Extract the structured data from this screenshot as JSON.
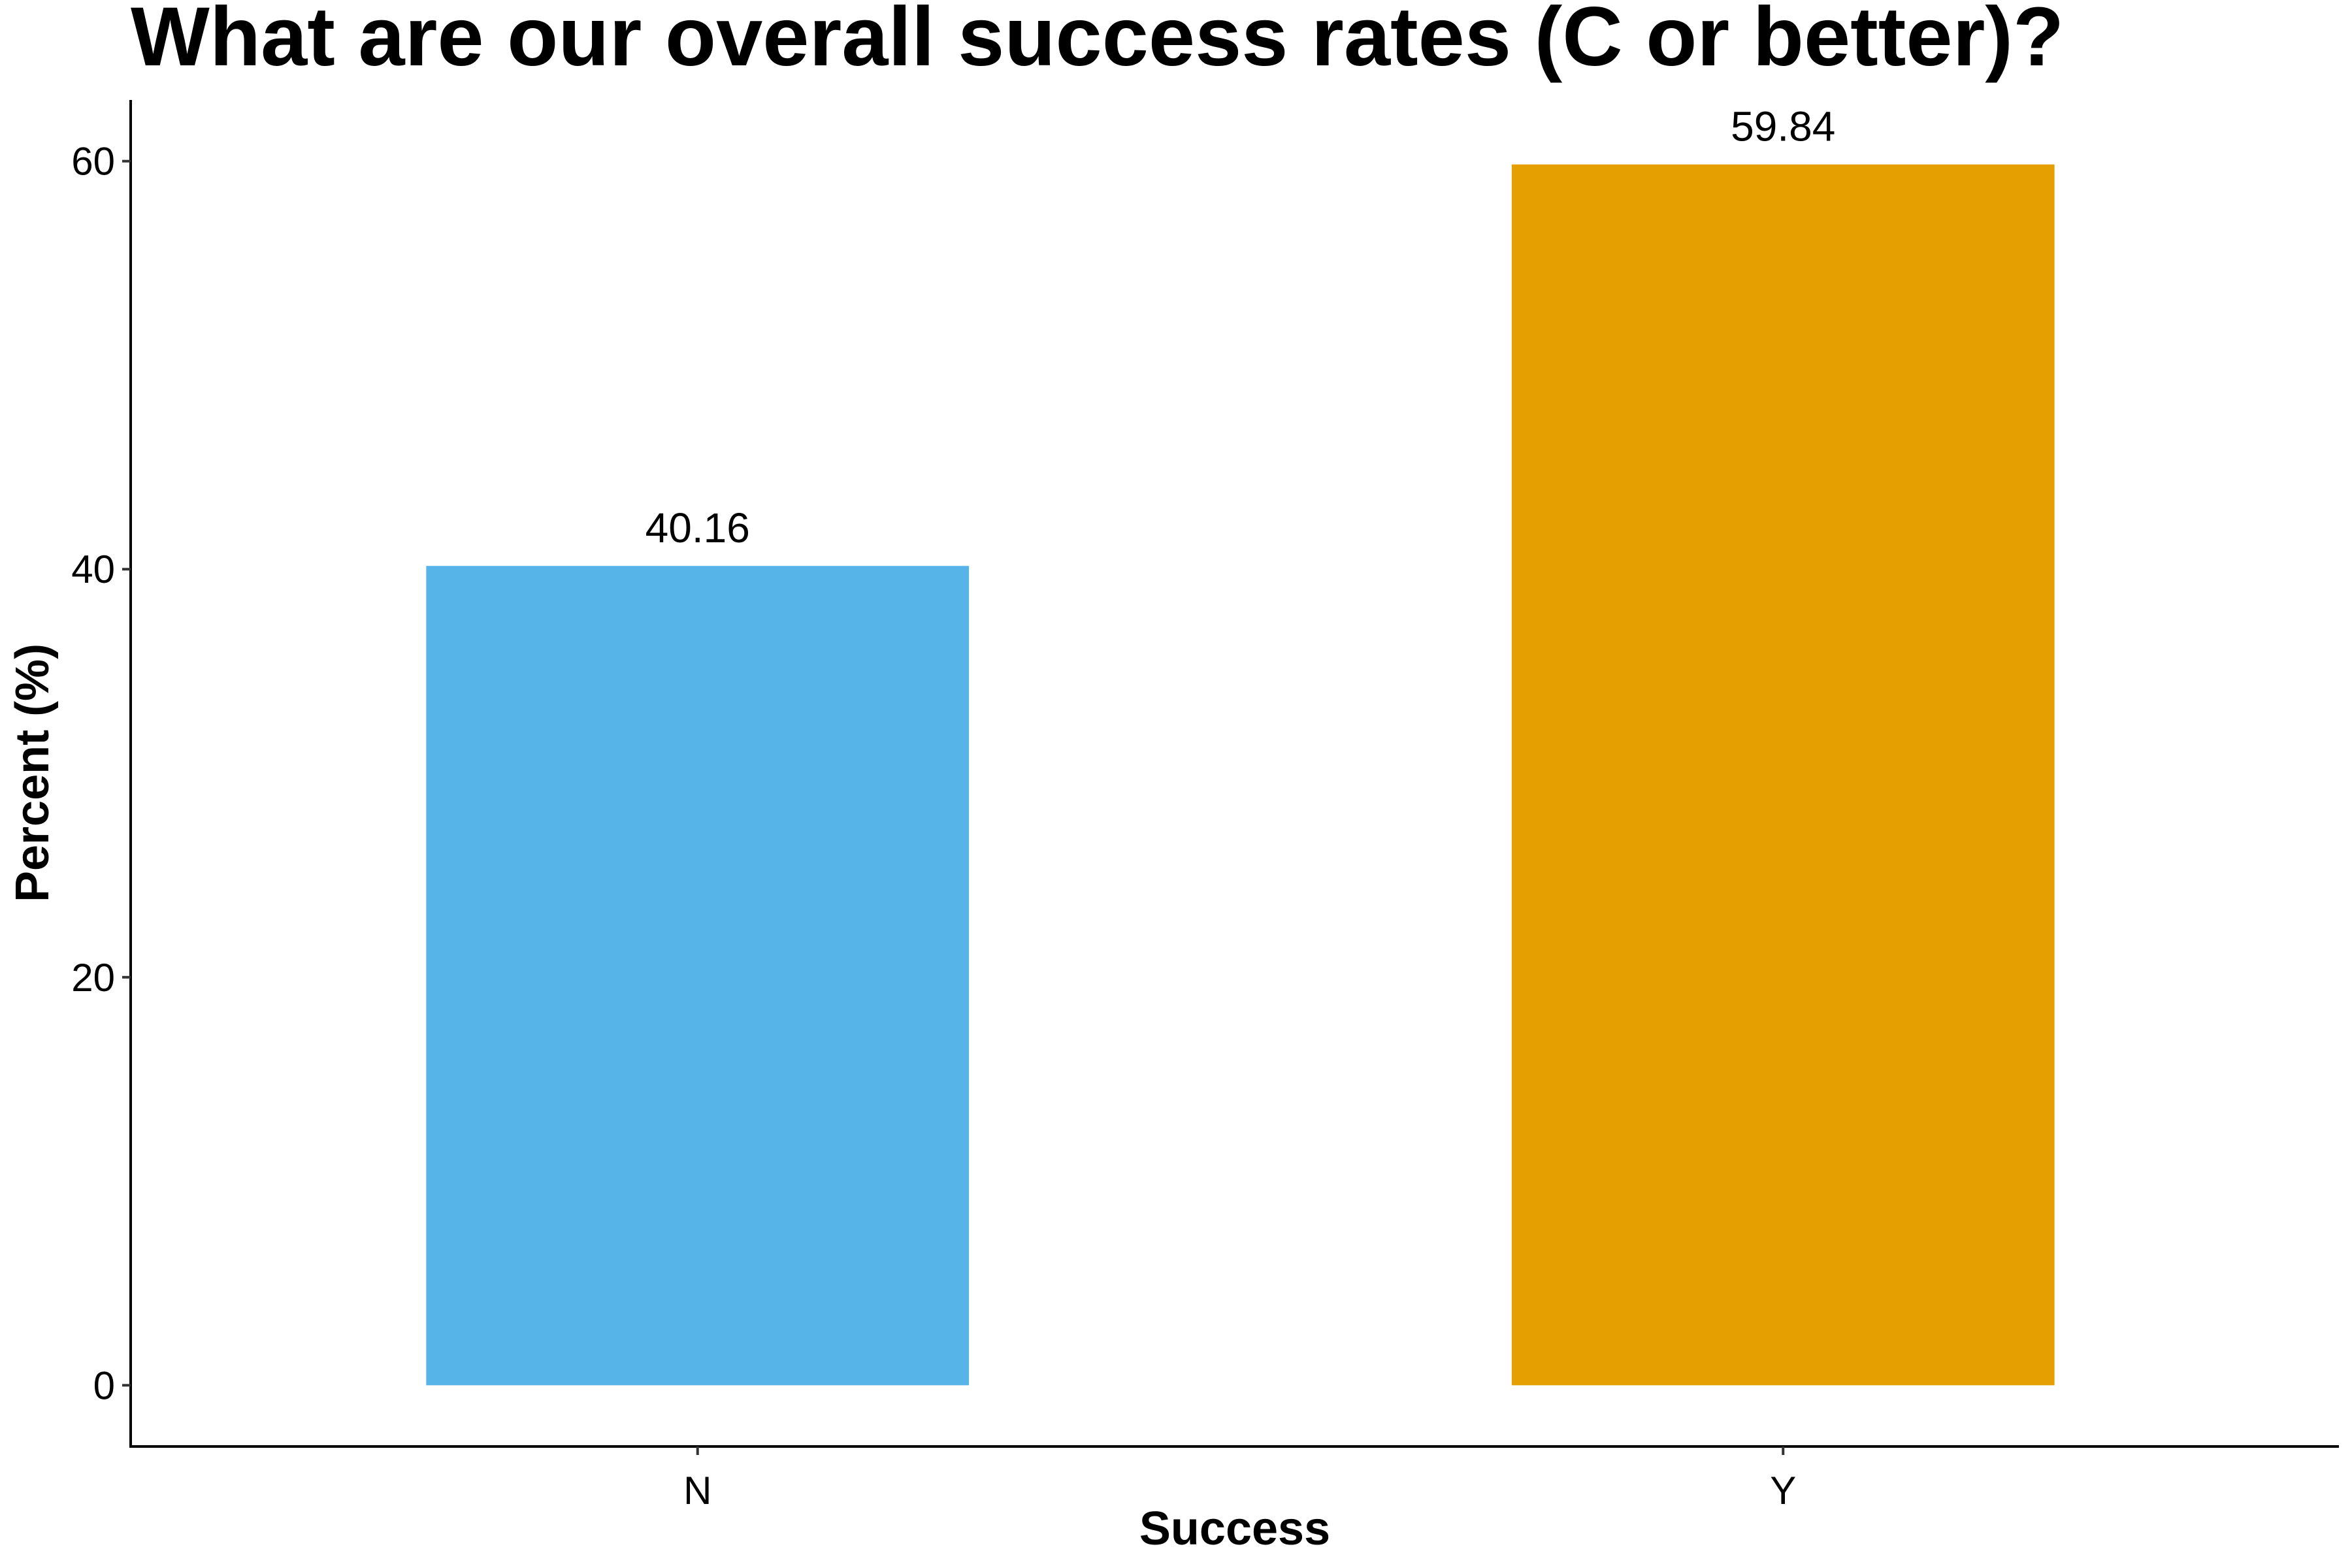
{
  "chart_data": {
    "type": "bar",
    "title": "What are our overall success rates (C or better)?",
    "xlabel": "Success",
    "ylabel": "Percent (%)",
    "categories": [
      "N",
      "Y"
    ],
    "values": [
      40.16,
      59.84
    ],
    "data_labels": [
      "40.16",
      "59.84"
    ],
    "colors": [
      "#56B4E9",
      "#E69F00"
    ],
    "ylim": [
      -3,
      63
    ],
    "yticks": [
      0,
      20,
      40,
      60
    ],
    "ytick_labels": [
      "0",
      "20",
      "40",
      "60"
    ],
    "grid": false,
    "legend": "none"
  }
}
